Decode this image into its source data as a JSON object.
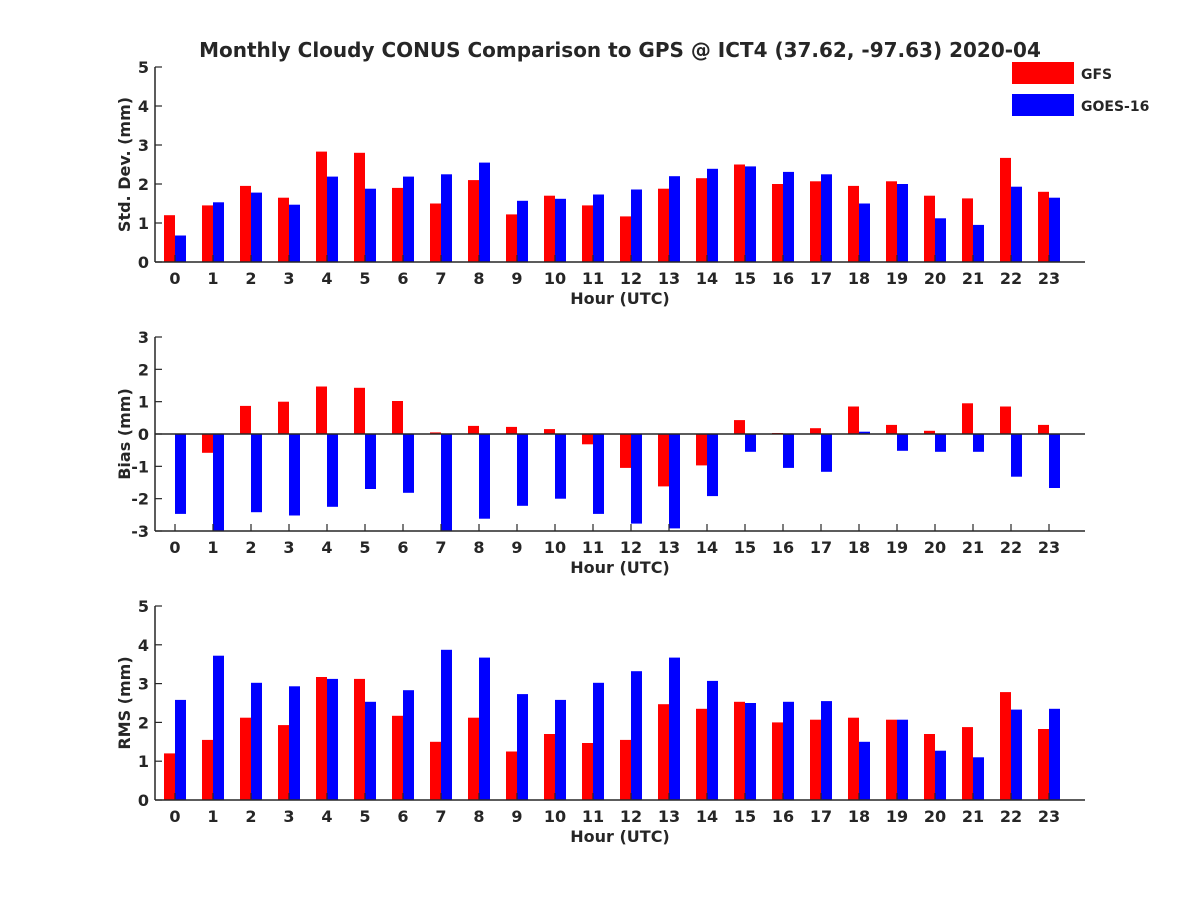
{
  "title": "Monthly Cloudy CONUS Comparison to GPS @ ICT4 (37.62, -97.63) 2020-04",
  "legend": [
    {
      "label": "GFS",
      "color": "#ff0000"
    },
    {
      "label": "GOES-16",
      "color": "#0000ff"
    }
  ],
  "chart_data": [
    {
      "type": "bar",
      "ylabel": "Std. Dev. (mm)",
      "xlabel": "Hour (UTC)",
      "categories": [
        "0",
        "1",
        "2",
        "3",
        "4",
        "5",
        "6",
        "7",
        "8",
        "9",
        "10",
        "11",
        "12",
        "13",
        "14",
        "15",
        "16",
        "17",
        "18",
        "19",
        "20",
        "21",
        "22",
        "23"
      ],
      "ylim": [
        0,
        5
      ],
      "yticks": [
        "0",
        "1",
        "2",
        "3",
        "4",
        "5"
      ],
      "series": [
        {
          "name": "GFS",
          "values": [
            1.2,
            1.45,
            1.95,
            1.65,
            2.83,
            2.8,
            1.9,
            1.5,
            2.1,
            1.22,
            1.7,
            1.45,
            1.17,
            1.88,
            2.15,
            2.5,
            2.0,
            2.07,
            1.95,
            2.07,
            1.7,
            1.63,
            2.67,
            1.8
          ]
        },
        {
          "name": "GOES-16",
          "values": [
            0.68,
            1.53,
            1.78,
            1.47,
            2.19,
            1.88,
            2.19,
            2.25,
            2.55,
            1.57,
            1.62,
            1.73,
            1.86,
            2.2,
            2.39,
            2.45,
            2.31,
            2.25,
            1.5,
            2.0,
            1.12,
            0.95,
            1.93,
            1.65
          ]
        }
      ]
    },
    {
      "type": "bar",
      "ylabel": "Bias (mm)",
      "xlabel": "Hour (UTC)",
      "categories": [
        "0",
        "1",
        "2",
        "3",
        "4",
        "5",
        "6",
        "7",
        "8",
        "9",
        "10",
        "11",
        "12",
        "13",
        "14",
        "15",
        "16",
        "17",
        "18",
        "19",
        "20",
        "21",
        "22",
        "23"
      ],
      "ylim": [
        -3,
        3
      ],
      "yticks": [
        "-3",
        "-2",
        "-1",
        "0",
        "1",
        "2",
        "3"
      ],
      "series": [
        {
          "name": "GFS",
          "values": [
            0.0,
            -0.58,
            0.87,
            1.0,
            1.47,
            1.43,
            1.02,
            0.05,
            0.25,
            0.22,
            0.15,
            -0.32,
            -1.05,
            -1.62,
            -0.97,
            0.43,
            0.03,
            0.18,
            0.85,
            0.28,
            0.1,
            0.95,
            0.85,
            0.28
          ]
        },
        {
          "name": "GOES-16",
          "values": [
            -2.47,
            -3.0,
            -2.42,
            -2.52,
            -2.25,
            -1.7,
            -1.82,
            -3.0,
            -2.62,
            -2.22,
            -2.0,
            -2.47,
            -2.77,
            -2.92,
            -1.92,
            -0.55,
            -1.05,
            -1.17,
            0.07,
            -0.52,
            -0.55,
            -0.55,
            -1.32,
            -1.67
          ]
        }
      ]
    },
    {
      "type": "bar",
      "ylabel": "RMS (mm)",
      "xlabel": "Hour (UTC)",
      "categories": [
        "0",
        "1",
        "2",
        "3",
        "4",
        "5",
        "6",
        "7",
        "8",
        "9",
        "10",
        "11",
        "12",
        "13",
        "14",
        "15",
        "16",
        "17",
        "18",
        "19",
        "20",
        "21",
        "22",
        "23"
      ],
      "ylim": [
        0,
        5
      ],
      "yticks": [
        "0",
        "1",
        "2",
        "3",
        "4",
        "5"
      ],
      "series": [
        {
          "name": "GFS",
          "values": [
            1.2,
            1.55,
            2.12,
            1.93,
            3.17,
            3.12,
            2.17,
            1.5,
            2.12,
            1.25,
            1.7,
            1.47,
            1.55,
            2.47,
            2.35,
            2.53,
            2.0,
            2.07,
            2.12,
            2.07,
            1.7,
            1.88,
            2.78,
            1.83
          ]
        },
        {
          "name": "GOES-16",
          "values": [
            2.58,
            3.72,
            3.02,
            2.93,
            3.12,
            2.53,
            2.83,
            3.87,
            3.67,
            2.73,
            2.58,
            3.02,
            3.32,
            3.67,
            3.07,
            2.5,
            2.53,
            2.55,
            1.5,
            2.07,
            1.27,
            1.1,
            2.33,
            2.35
          ]
        }
      ]
    }
  ]
}
